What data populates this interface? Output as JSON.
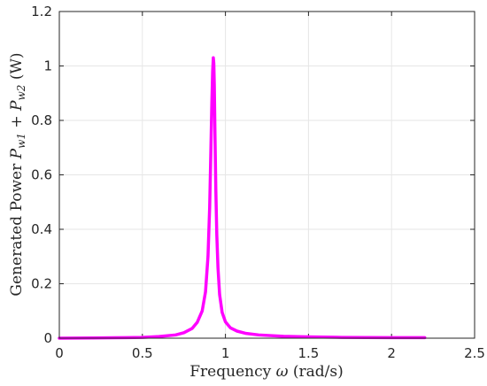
{
  "chart_data": {
    "type": "line",
    "xlabel_prefix": "Frequency ",
    "xlabel_symbol": "ω",
    "xlabel_suffix": " (rad/s)",
    "ylabel_prefix": "Generated Power ",
    "ylabel_p1": "P",
    "ylabel_sub1": "w1",
    "ylabel_plus": " + ",
    "ylabel_p2": "P",
    "ylabel_sub2": "w2",
    "ylabel_suffix": " (W)",
    "xlim": [
      0,
      2.5
    ],
    "ylim": [
      0,
      1.2
    ],
    "xticks": [
      0,
      0.5,
      1,
      1.5,
      2,
      2.5
    ],
    "xtick_labels": [
      "0",
      "0.5",
      "1",
      "1.5",
      "2",
      "2.5"
    ],
    "yticks": [
      0,
      0.2,
      0.4,
      0.6,
      0.8,
      1,
      1.2
    ],
    "ytick_labels": [
      "0",
      "0.2",
      "0.4",
      "0.6",
      "0.8",
      "1",
      "1.2"
    ],
    "grid": true,
    "series": [
      {
        "color": "#ff00ff",
        "x": [
          0,
          0.2,
          0.4,
          0.5,
          0.6,
          0.7,
          0.75,
          0.8,
          0.83,
          0.86,
          0.88,
          0.895,
          0.905,
          0.912,
          0.918,
          0.923,
          0.927,
          0.93,
          0.933,
          0.937,
          0.942,
          0.948,
          0.955,
          0.965,
          0.98,
          1.0,
          1.03,
          1.07,
          1.12,
          1.2,
          1.35,
          1.5,
          1.7,
          2.0,
          2.2
        ],
        "y": [
          0,
          0.001,
          0.002,
          0.003,
          0.006,
          0.012,
          0.02,
          0.036,
          0.058,
          0.1,
          0.17,
          0.3,
          0.48,
          0.68,
          0.86,
          0.98,
          1.03,
          1.01,
          0.93,
          0.75,
          0.55,
          0.38,
          0.26,
          0.16,
          0.095,
          0.06,
          0.038,
          0.026,
          0.018,
          0.012,
          0.007,
          0.005,
          0.003,
          0.002,
          0.002
        ]
      }
    ]
  }
}
